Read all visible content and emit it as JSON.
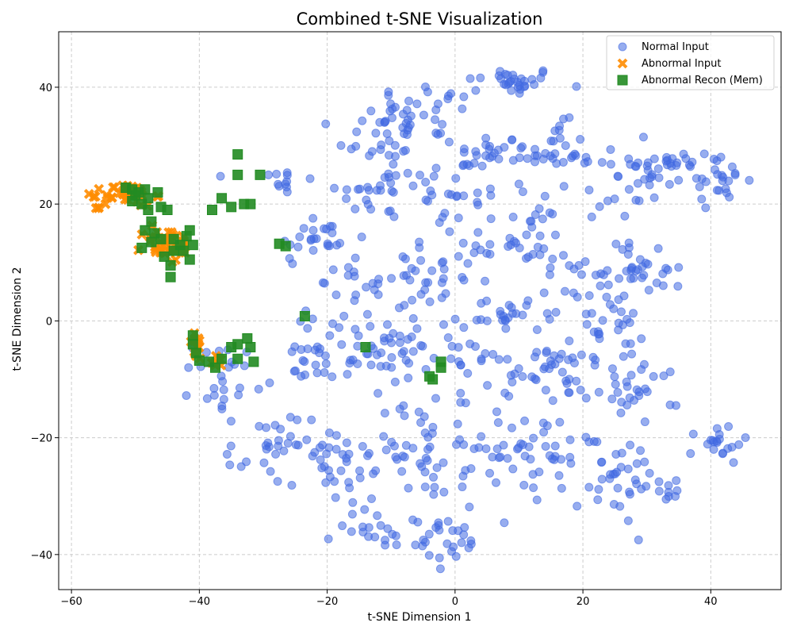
{
  "chart_data": {
    "type": "scatter",
    "title": "Combined t-SNE Visualization",
    "xlabel": "t-SNE Dimension 1",
    "ylabel": "t-SNE Dimension 2",
    "xlim": [
      -62,
      51
    ],
    "ylim": [
      -46,
      49.5
    ],
    "xticks": [
      -60,
      -40,
      -20,
      0,
      20,
      40
    ],
    "yticks": [
      -40,
      -20,
      0,
      20,
      40
    ],
    "xtick_labels": [
      "−60",
      "−40",
      "−20",
      "0",
      "20",
      "40"
    ],
    "ytick_labels": [
      "−40",
      "−20",
      "0",
      "20",
      "40"
    ],
    "grid": true,
    "legend_position": "top-right",
    "series": [
      {
        "name": "Normal Input",
        "marker": "circle",
        "color": "#4169e1",
        "clusters": [
          {
            "cx": 9,
            "cy": 41,
            "sx": 4.5,
            "sy": 1.5,
            "n": 30
          },
          {
            "cx": -4,
            "cy": 36,
            "sx": 6,
            "sy": 3,
            "n": 35
          },
          {
            "cx": -12,
            "cy": 31,
            "sx": 4,
            "sy": 3,
            "n": 25
          },
          {
            "cx": -27,
            "cy": 24,
            "sx": 3,
            "sy": 2,
            "n": 12
          },
          {
            "cx": -22,
            "cy": 14,
            "sx": 4,
            "sy": 3,
            "n": 25
          },
          {
            "cx": -12,
            "cy": 22,
            "sx": 4,
            "sy": 3,
            "n": 25
          },
          {
            "cx": 0,
            "cy": 22,
            "sx": 5,
            "sy": 4,
            "n": 30
          },
          {
            "cx": 5,
            "cy": 29,
            "sx": 3,
            "sy": 2,
            "n": 20
          },
          {
            "cx": 15,
            "cy": 29,
            "sx": 4,
            "sy": 3,
            "n": 30
          },
          {
            "cx": 24,
            "cy": 24,
            "sx": 5,
            "sy": 4,
            "n": 30
          },
          {
            "cx": 34,
            "cy": 27,
            "sx": 4,
            "sy": 2,
            "n": 25
          },
          {
            "cx": 41,
            "cy": 24,
            "sx": 3,
            "sy": 2.5,
            "n": 25
          },
          {
            "cx": 30,
            "cy": 9,
            "sx": 4,
            "sy": 3,
            "n": 30
          },
          {
            "cx": 20,
            "cy": 6,
            "sx": 4,
            "sy": 4,
            "n": 25
          },
          {
            "cx": 11,
            "cy": 14,
            "sx": 4,
            "sy": 4,
            "n": 30
          },
          {
            "cx": -2,
            "cy": 8,
            "sx": 6,
            "sy": 5,
            "n": 35
          },
          {
            "cx": -14,
            "cy": 4,
            "sx": 5,
            "sy": 4,
            "n": 30
          },
          {
            "cx": -22,
            "cy": -6,
            "sx": 4,
            "sy": 4,
            "n": 25
          },
          {
            "cx": -11,
            "cy": -7,
            "sx": 5,
            "sy": 4,
            "n": 30
          },
          {
            "cx": 0,
            "cy": -3,
            "sx": 6,
            "sy": 4,
            "n": 30
          },
          {
            "cx": 10,
            "cy": -8,
            "sx": 5,
            "sy": 4,
            "n": 30
          },
          {
            "cx": 20,
            "cy": -7,
            "sx": 4,
            "sy": 4,
            "n": 25
          },
          {
            "cx": 29,
            "cy": -12,
            "sx": 4,
            "sy": 3,
            "n": 25
          },
          {
            "cx": -36,
            "cy": -10,
            "sx": 3,
            "sy": 4,
            "n": 25
          },
          {
            "cx": -29,
            "cy": -22,
            "sx": 4,
            "sy": 4,
            "n": 30
          },
          {
            "cx": -18,
            "cy": -25,
            "sx": 5,
            "sy": 5,
            "n": 35
          },
          {
            "cx": -6,
            "cy": -22,
            "sx": 5,
            "sy": 5,
            "n": 35
          },
          {
            "cx": 5,
            "cy": -22,
            "sx": 5,
            "sy": 5,
            "n": 30
          },
          {
            "cx": 14,
            "cy": -24,
            "sx": 5,
            "sy": 6,
            "n": 35
          },
          {
            "cx": 25,
            "cy": -27,
            "sx": 5,
            "sy": 5,
            "n": 30
          },
          {
            "cx": 33,
            "cy": -28,
            "sx": 2,
            "sy": 2,
            "n": 10
          },
          {
            "cx": 41,
            "cy": -21,
            "sx": 2.5,
            "sy": 2,
            "n": 20
          },
          {
            "cx": -10,
            "cy": -35,
            "sx": 5,
            "sy": 3,
            "n": 25
          },
          {
            "cx": 0,
            "cy": -38,
            "sx": 4,
            "sy": 2.5,
            "n": 20
          },
          {
            "cx": 26,
            "cy": -2,
            "sx": 3,
            "sy": 3,
            "n": 15
          },
          {
            "cx": 8,
            "cy": 2,
            "sx": 3,
            "sy": 2,
            "n": 15
          }
        ]
      },
      {
        "name": "Abnormal Input",
        "marker": "x",
        "color": "#ff8c00",
        "clusters": [
          {
            "cx": -51,
            "cy": 21.5,
            "sx": 2.5,
            "sy": 1.2,
            "n": 40
          },
          {
            "cx": -56,
            "cy": 19.3,
            "sx": 0.3,
            "sy": 0.3,
            "n": 3
          },
          {
            "cx": -45,
            "cy": 13,
            "sx": 2.5,
            "sy": 2,
            "n": 40
          },
          {
            "cx": -40.5,
            "cy": -4.5,
            "sx": 0.7,
            "sy": 1.5,
            "n": 15
          },
          {
            "cx": -37,
            "cy": -7,
            "sx": 0.8,
            "sy": 0.6,
            "n": 8
          }
        ]
      },
      {
        "name": "Abnormal Recon (Mem)",
        "marker": "square",
        "color": "#228b22",
        "points": [
          [
            -51.5,
            22.8
          ],
          [
            -50.5,
            22.5
          ],
          [
            -49.5,
            22
          ],
          [
            -48.5,
            22.5
          ],
          [
            -50,
            21.5
          ],
          [
            -48,
            21
          ],
          [
            -49,
            20
          ],
          [
            -50.5,
            20.5
          ],
          [
            -46.5,
            22
          ],
          [
            -46,
            19.5
          ],
          [
            -45,
            19
          ],
          [
            -48,
            19
          ],
          [
            -47.5,
            17
          ],
          [
            -48.5,
            15.5
          ],
          [
            -47,
            15
          ],
          [
            -46,
            14
          ],
          [
            -44,
            14
          ],
          [
            -43,
            13
          ],
          [
            -41.5,
            15.5
          ],
          [
            -42,
            14.5
          ],
          [
            -41,
            13
          ],
          [
            -44,
            12
          ],
          [
            -42.5,
            12
          ],
          [
            -45.5,
            11
          ],
          [
            -41.5,
            10.5
          ],
          [
            -44.5,
            9.5
          ],
          [
            -44.5,
            7.5
          ],
          [
            -49,
            12.5
          ],
          [
            -47.5,
            13.5
          ],
          [
            -38,
            19
          ],
          [
            -36.5,
            21
          ],
          [
            -35,
            19.5
          ],
          [
            -33,
            20
          ],
          [
            -32,
            20
          ],
          [
            -34,
            25
          ],
          [
            -34,
            28.5
          ],
          [
            -30.5,
            25
          ],
          [
            -27.5,
            13.2
          ],
          [
            -26.5,
            12.8
          ],
          [
            -23.5,
            0.8
          ],
          [
            -41,
            -2.5
          ],
          [
            -41,
            -4
          ],
          [
            -40.5,
            -5.5
          ],
          [
            -40,
            -6.8
          ],
          [
            -38.5,
            -7
          ],
          [
            -37.5,
            -8
          ],
          [
            -36.5,
            -6.5
          ],
          [
            -35,
            -4.5
          ],
          [
            -34,
            -4
          ],
          [
            -34,
            -6.5
          ],
          [
            -32.5,
            -3
          ],
          [
            -32,
            -4.5
          ],
          [
            -31.5,
            -7
          ],
          [
            -14,
            -4.5
          ],
          [
            -4,
            -9.5
          ],
          [
            -3.5,
            -10
          ],
          [
            -2.2,
            -7
          ],
          [
            -2.2,
            -8
          ]
        ]
      }
    ]
  }
}
